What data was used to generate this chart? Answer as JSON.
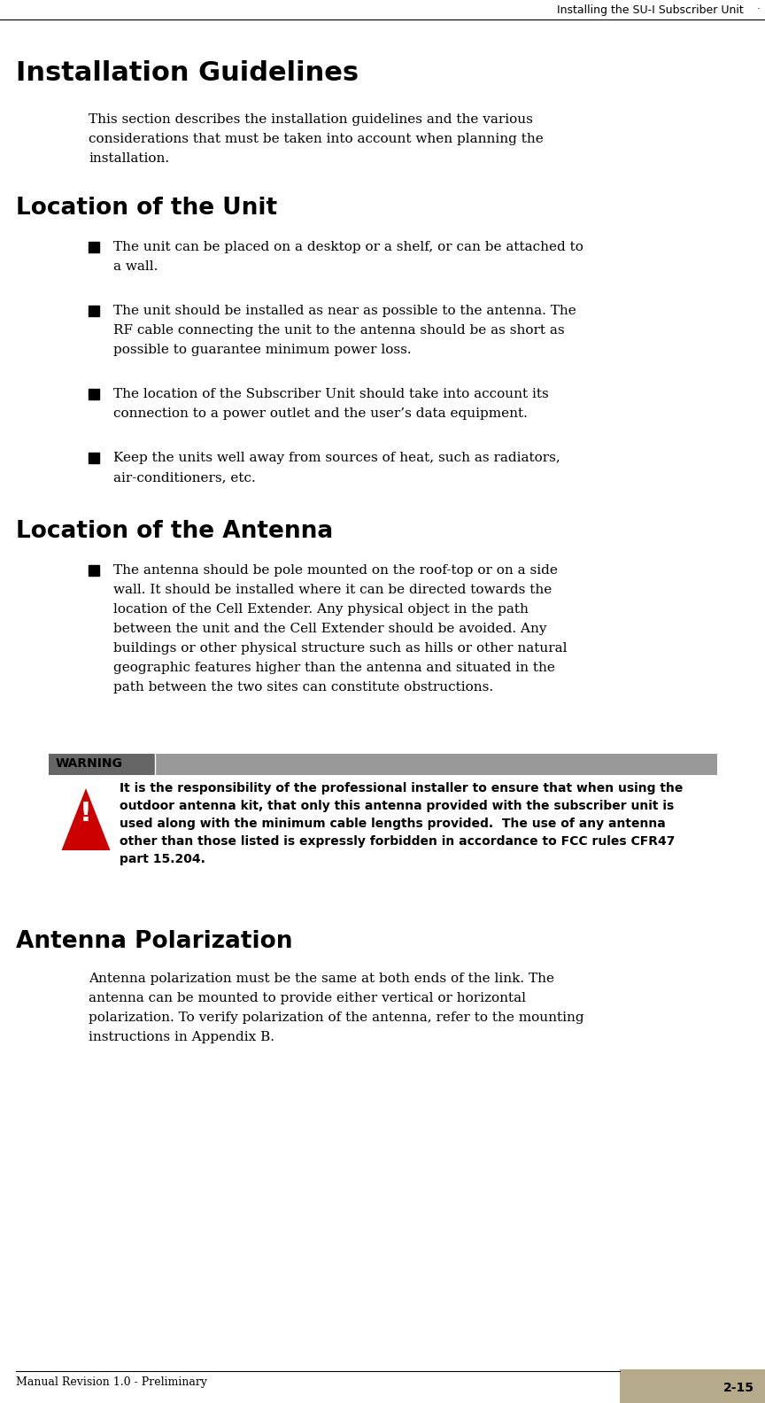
{
  "header_text": "Installing the SU-I Subscriber Unit",
  "footer_left": "Manual Revision 1.0 - Preliminary",
  "footer_right": "2-15",
  "page_bg": "#ffffff",
  "title1": "Installation Guidelines",
  "body1_lines": [
    "This section describes the installation guidelines and the various",
    "considerations that must be taken into account when planning the",
    "installation."
  ],
  "title2": "Location of the Unit",
  "bullets_unit": [
    [
      "The unit can be placed on a desktop or a shelf, or can be attached to",
      "a wall."
    ],
    [
      "The unit should be installed as near as possible to the antenna. The",
      "RF cable connecting the unit to the antenna should be as short as",
      "possible to guarantee minimum power loss."
    ],
    [
      "The location of the Subscriber Unit should take into account its",
      "connection to a power outlet and the user’s data equipment."
    ],
    [
      "Keep the units well away from sources of heat, such as radiators,",
      "air-conditioners, etc."
    ]
  ],
  "title3": "Location of the Antenna",
  "bullets_antenna": [
    [
      "The antenna should be pole mounted on the roof-top or on a side",
      "wall. It should be installed where it can be directed towards the",
      "location of the Cell Extender. Any physical object in the path",
      "between the unit and the Cell Extender should be avoided. Any",
      "buildings or other physical structure such as hills or other natural",
      "geographic features higher than the antenna and situated in the",
      "path between the two sites can constitute obstructions."
    ]
  ],
  "warning_label": "WARNING",
  "warning_text_lines": [
    "It is the responsibility of the professional installer to ensure that when using the",
    "outdoor antenna kit, that only this antenna provided with the subscriber unit is",
    "used along with the minimum cable lengths provided.  The use of any antenna",
    "other than those listed is expressly forbidden in accordance to FCC rules CFR47",
    "part 15.204."
  ],
  "title4": "Antenna Polarization",
  "body4_lines": [
    "Antenna polarization must be the same at both ends of the link. The",
    "antenna can be mounted to provide either vertical or horizontal",
    "polarization. To verify polarization of the antenna, refer to the mounting",
    "instructions in Appendix B."
  ],
  "warn_label_bg": "#888888",
  "warn_label_left_bg": "#555555",
  "warn_full_bg": "#aaaaaa",
  "triangle_color": "#dd0000",
  "footer_box_color": "#b5aa8a"
}
